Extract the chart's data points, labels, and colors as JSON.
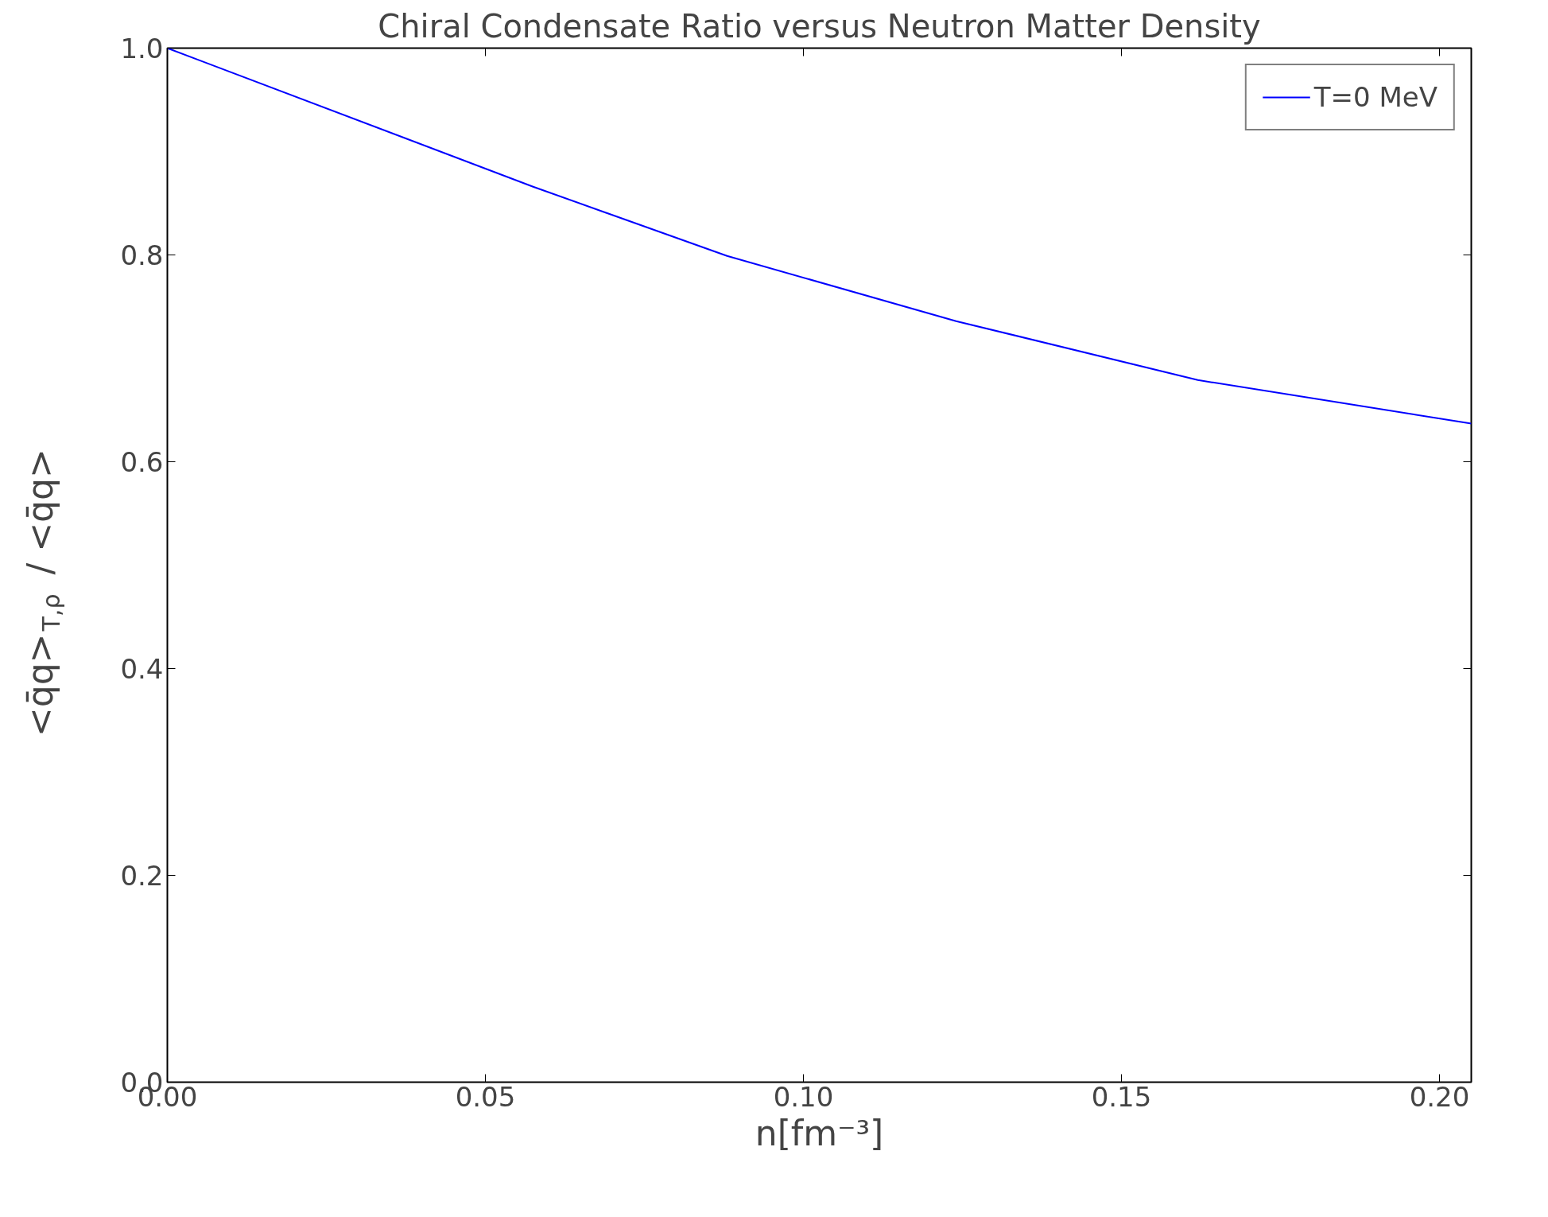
{
  "chart_data": {
    "type": "line",
    "title": "Chiral Condensate Ratio versus Neutron Matter Density",
    "xlabel": "n[fm⁻³]",
    "ylabel": "<q̄q>$_{T,ρ}$ / <q̄q>",
    "series": [
      {
        "name": "T=0 MeV",
        "color": "#0000ff",
        "x": [
          0,
          0.0575,
          0.088,
          0.124,
          0.162,
          0.205
        ],
        "values": [
          1.0,
          0.866,
          0.799,
          0.736,
          0.679,
          0.637
        ]
      }
    ],
    "xlim": [
      0,
      0.205
    ],
    "ylim": [
      0,
      1.0
    ],
    "xticks": [
      {
        "value": 0,
        "label": "0.00"
      },
      0.05,
      {
        "value": 0.1,
        "label": "0.10"
      },
      0.15,
      {
        "value": 0.2,
        "label": "0.20"
      }
    ],
    "yticks": [
      {
        "value": 0,
        "label": "0.0"
      },
      0.2,
      0.4,
      0.6,
      0.8,
      {
        "value": 1,
        "label": "1.0"
      }
    ],
    "grid": false,
    "legend": "top right",
    "line_style": "solid",
    "marker": "none"
  }
}
